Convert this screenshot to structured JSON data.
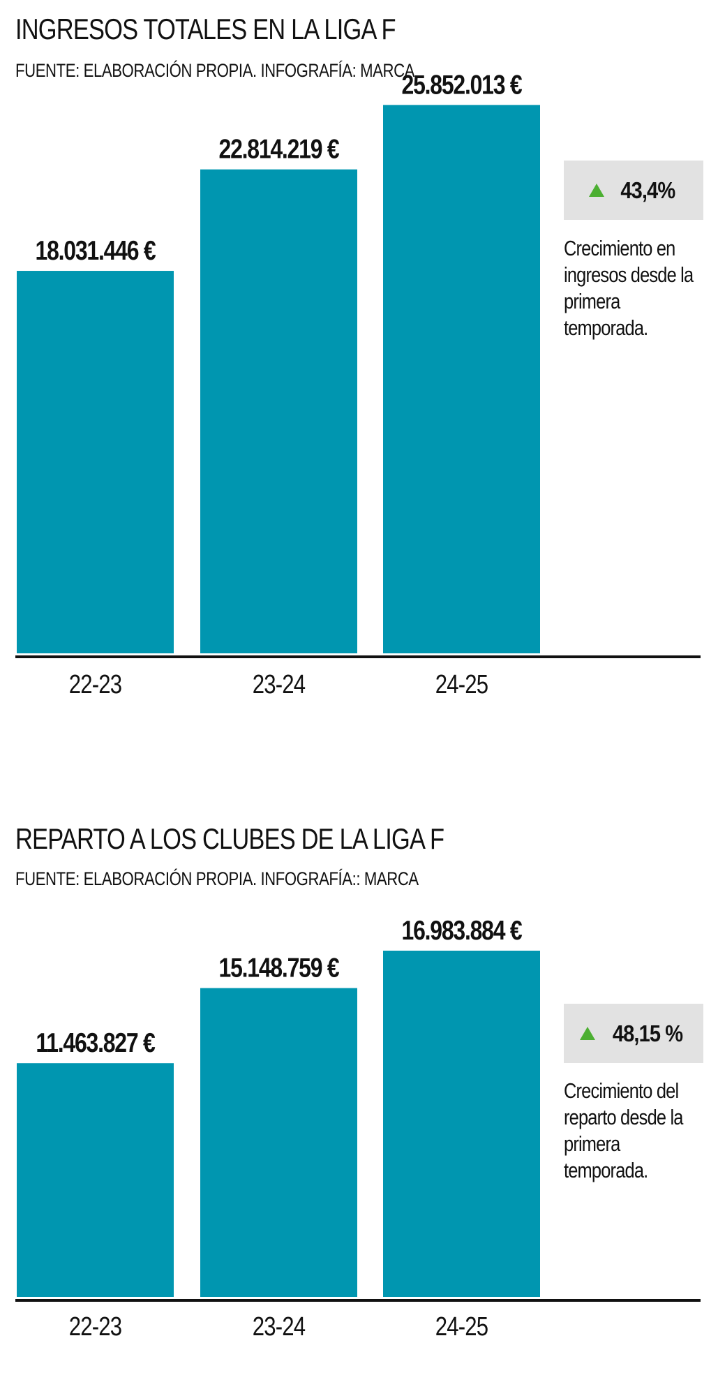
{
  "chart_data": [
    {
      "type": "bar",
      "title": "INGRESOS TOTALES EN LA LIGA F",
      "subtitle": "FUENTE: ELABORACIÓN PROPIA. INFOGRAFÍA: MARCA",
      "categories": [
        "22-23",
        "23-24",
        "24-25"
      ],
      "values": [
        18031446,
        22814219,
        25852013
      ],
      "value_labels": [
        "18.031.446 €",
        "22.814.219 €",
        "25.852.013 €"
      ],
      "ylim": [
        0,
        30800000
      ],
      "color": "#0096b0",
      "grid": false,
      "growth_badge": "43,4%",
      "growth_note": [
        "Crecimiento en",
        "ingresos desde la",
        "primera",
        "temporada."
      ]
    },
    {
      "type": "bar",
      "title": "REPARTO A LOS CLUBES DE LA LIGA F",
      "subtitle": "FUENTE: ELABORACIÓN PROPIA. INFOGRAFÍA:: MARCA",
      "categories": [
        "22-23",
        "23-24",
        "24-25"
      ],
      "values": [
        11463827,
        15148759,
        16983884
      ],
      "value_labels": [
        "11.463.827 €",
        "15.148.759 €",
        "16.983.884 €"
      ],
      "ylim": [
        0,
        23900000
      ],
      "color": "#0096b0",
      "grid": false,
      "growth_badge": "48,15 %",
      "growth_note": [
        "Crecimiento del",
        "reparto desde la",
        "primera",
        "temporada."
      ]
    }
  ],
  "colors": {
    "bar": "#0096b0",
    "badge_bg": "#e2e2e2",
    "arrow": "#4caf32",
    "text": "#111111"
  }
}
